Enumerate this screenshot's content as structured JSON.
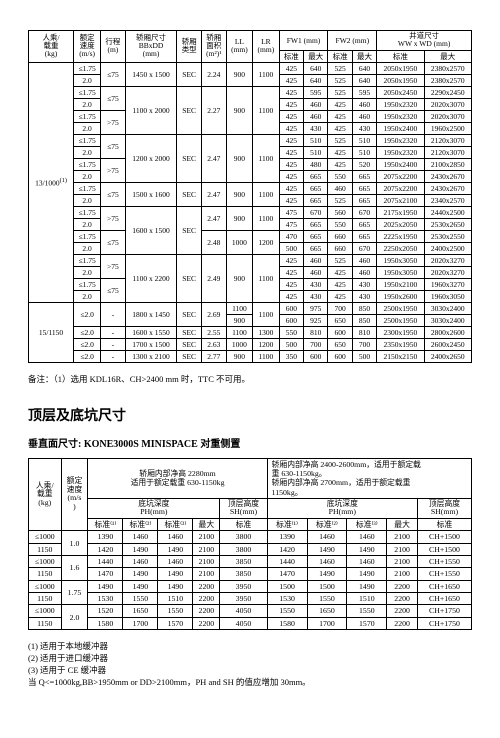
{
  "table1": {
    "headers": {
      "c0": "人乘/\n载重\n(kg)",
      "c1": "额定\n速度\n(m/s)",
      "c2": "行程\n(m)",
      "c3": "轿厢尺寸\nBBxDD\n(mm)",
      "c4": "轿厢\n类型",
      "c5": "轿厢\n面积\n(m²)¹",
      "c6": "LL\n(mm)",
      "c7": "LR\n(mm)",
      "fw1": "FW1 (mm)",
      "fw2": "FW2 (mm)",
      "well": "井道尺寸\nWW x WD  (mm)",
      "std": "标准",
      "max": "最大"
    },
    "group1": {
      "load": "13/1000",
      "sup": "(1)",
      "rows": [
        {
          "spd": "≤1.75",
          "trip": "≤75",
          "car": "1450 x 1500",
          "typ": "SEC",
          "area": "2.24",
          "ll": "900",
          "lr": "1100",
          "r": [
            [
              "425",
              "640",
              "525",
              "640",
              "2050x1950",
              "2380x2570"
            ],
            [
              "425",
              "640",
              "525",
              "640",
              "2050x1950",
              "2380x2570"
            ]
          ]
        },
        {
          "spd": "2.0",
          "r": null
        },
        {
          "spd": "≤1.75",
          "trip": "≤75",
          "car": "1100 x 2000",
          "typ": "SEC",
          "area": "2.27",
          "ll": "900",
          "lr": "1100",
          "r": [
            [
              "425",
              "595",
              "525",
              "595",
              "2050x2450",
              "2290x2450"
            ],
            [
              "425",
              "460",
              "425",
              "460",
              "1950x2320",
              "2020x3070"
            ],
            [
              "425",
              "460",
              "425",
              "460",
              "1950x2320",
              "2020x3070"
            ],
            [
              "425",
              "430",
              "425",
              "430",
              "1950x2400",
              "1960x2500"
            ]
          ]
        },
        {
          "spd": "2.0",
          "r": null
        },
        {
          "spd": "≤1.75",
          "trip": ">75",
          "r": null
        },
        {
          "spd": "2.0",
          "r": null
        },
        {
          "spd": "≤1.75",
          "trip": "≤75",
          "car": "1200 x 2000",
          "typ": "SEC",
          "area": "2.47",
          "ll": "900",
          "lr": "1100",
          "r": [
            [
              "425",
              "510",
              "525",
              "510",
              "1950x2320",
              "2120x3070"
            ],
            [
              "425",
              "510",
              "425",
              "510",
              "1950x2320",
              "2120x3070"
            ],
            [
              "425",
              "480",
              "425",
              "520",
              "1950x2400",
              "2100x2850"
            ],
            [
              "425",
              "665",
              "550",
              "665",
              "2075x2200",
              "2430x2670"
            ]
          ]
        },
        {
          "spd": "2.0",
          "r": null
        },
        {
          "spd": "≤1.75",
          "trip": ">75",
          "r": null
        },
        {
          "spd": "2.0",
          "r": null
        },
        {
          "spd": "≤1.75",
          "trip": "≤75",
          "car": "1500 x 1600",
          "typ": "SEC",
          "area": "2.47",
          "ll": "900",
          "lr": "1100",
          "r": [
            [
              "425",
              "665",
              "460",
              "665",
              "2075x2200",
              "2430x2670"
            ],
            [
              "425",
              "665",
              "525",
              "665",
              "2075x2100",
              "2340x2570"
            ],
            [
              "425",
              "715",
              "600",
              "715",
              "2175x1950",
              "2500x2570"
            ],
            [
              "425",
              "715",
              "600",
              "715",
              "2175x1950",
              "2500x2570"
            ]
          ]
        },
        {
          "spd": "2.0",
          "r": null
        },
        {
          "spd": "≤1.75",
          "trip": ">75",
          "car": "1600 x 1500",
          "typ": "SEC",
          "area_a": "2.47",
          "ll_a": "900",
          "lr_a": "1100",
          "r": [
            [
              "475",
              "670",
              "560",
              "670",
              "2175x1950",
              "2440x2500"
            ],
            [
              "475",
              "665",
              "550",
              "665",
              "2025x2050",
              "2530x2650"
            ],
            [
              "470",
              "665",
              "660",
              "665",
              "2225x1950",
              "2530x2550"
            ],
            [
              "500",
              "665",
              "660",
              "670",
              "2250x2050",
              "2400x2500"
            ]
          ]
        },
        {
          "spd": "2.0",
          "r": null
        },
        {
          "spd": "≤1.75",
          "trip": "≤75",
          "area_b": "2.48",
          "ll_b": "1000",
          "lr_b": "1200",
          "r": [
            [
              "425",
              "460",
              "525",
              "460",
              "1950x3050",
              "2020x3270"
            ],
            [
              "425",
              "460",
              "425",
              "460",
              "1950x3050",
              "2020x3270"
            ],
            [
              "425",
              "430",
              "425",
              "430",
              "1950x2100",
              "1960x3270"
            ],
            [
              "425",
              "430",
              "425",
              "430",
              "1950x2600",
              "1960x3050"
            ]
          ]
        },
        {
          "spd": "2.0",
          "r": null
        },
        {
          "spd": "≤1.75",
          "trip": ">75",
          "car2": "1100 x 2200",
          "typ2": "SEC",
          "area2": "2.49",
          "ll2": "900",
          "lr2": "1100",
          "r": null
        },
        {
          "spd": "2.0",
          "r": null
        }
      ]
    },
    "group2": {
      "load": "15/1150",
      "rows": [
        {
          "spd": "≤2.0",
          "trip": "-",
          "car": "1800 x 1450",
          "typ": "SEC",
          "area": "2.69",
          "ll": "1100\n900",
          "lr": "1100",
          "r": [
            [
              "600",
              "975",
              "700",
              "850",
              "2500x1950",
              "3030x2400"
            ],
            [
              "600",
              "925",
              "650",
              "850",
              "2500x1950",
              "3030x2400"
            ]
          ]
        },
        {
          "spd": "≤2.0",
          "trip": "-",
          "car": "1600 x 1550",
          "typ": "SEC",
          "area": "2.55",
          "ll": "1100",
          "lr": "1300",
          "r": [
            [
              "550",
              "810",
              "600",
              "810",
              "2300x1950",
              "2800x2600"
            ]
          ]
        },
        {
          "spd": "≤2.0",
          "trip": "-",
          "car": "1700 x 1500",
          "typ": "SEC",
          "area": "2.63",
          "ll": "1000",
          "lr": "1200",
          "r": [
            [
              "500",
              "700",
              "650",
              "700",
              "2350x1950",
              "2600x2450"
            ]
          ]
        },
        {
          "spd": "≤2.0",
          "trip": "-",
          "car": "1300 x 2100",
          "typ": "SEC",
          "area": "2.77",
          "ll": "900",
          "lr": "1100",
          "r": [
            [
              "350",
              "600",
              "600",
              "500",
              "2150x2150",
              "2400x2650"
            ]
          ]
        }
      ]
    }
  },
  "footnote": "备注：（1）选用 KDL16R、CH>2400 mm 时，TTC 不可用。",
  "section_title": "顶层及底坑尺寸",
  "sub_title": "垂直面尺寸: KONE3000S MINISPACE 对重侧置",
  "table2": {
    "note_a": "轿厢内部净高 2280mm\n适用于额定载重 630-1150kg",
    "note_b": "轿厢内部净高 2400-2600mm，适用于额定载\n重 630-1150kg。\n轿厢内部净高 2700mm，适用于额定载重\n1150kg。",
    "ph": "底坑深度\nPH(mm)",
    "sh": "顶层高度\nSH(mm)",
    "std1": "标准⁽¹⁾",
    "std2": "标准⁽²⁾",
    "std3": "标准⁽³⁾",
    "max": "最大",
    "std": "标准",
    "c0": "人乘/\n载重\n(kg)",
    "c1": "额定\n速度\n(m/s\n)",
    "rows": [
      {
        "load": "≤1000",
        "spd": "1.0",
        "v": [
          "1390",
          "1460",
          "1460",
          "2100",
          "3800",
          "1390",
          "1460",
          "1460",
          "2100",
          "CH+1500"
        ]
      },
      {
        "load": "1150",
        "v": [
          "1420",
          "1490",
          "1490",
          "2100",
          "3800",
          "1420",
          "1490",
          "1490",
          "2100",
          "CH+1500"
        ]
      },
      {
        "load": "≤1000",
        "spd": "1.6",
        "v": [
          "1440",
          "1460",
          "1460",
          "2100",
          "3850",
          "1440",
          "1460",
          "1460",
          "2100",
          "CH+1550"
        ]
      },
      {
        "load": "1150",
        "v": [
          "1470",
          "1490",
          "1490",
          "2100",
          "3850",
          "1470",
          "1490",
          "1490",
          "2100",
          "CH+1550"
        ]
      },
      {
        "load": "≤1000",
        "spd": "1.75",
        "v": [
          "1490",
          "1490",
          "1490",
          "2200",
          "3950",
          "1500",
          "1500",
          "1490",
          "2200",
          "CH+1650"
        ]
      },
      {
        "load": "1150",
        "v": [
          "1530",
          "1550",
          "1510",
          "2200",
          "3950",
          "1530",
          "1550",
          "1510",
          "2200",
          "CH+1650"
        ]
      },
      {
        "load": "≤1000",
        "spd": "2.0",
        "v": [
          "1520",
          "1650",
          "1550",
          "2200",
          "4050",
          "1550",
          "1650",
          "1550",
          "2200",
          "CH+1750"
        ]
      },
      {
        "load": "1150",
        "v": [
          "1580",
          "1700",
          "1570",
          "2200",
          "4050",
          "1580",
          "1700",
          "1570",
          "2200",
          "CH+1750"
        ]
      }
    ],
    "footnotes": "(1) 适用于本地缓冲器\n(2) 适用于进口缓冲器\n(3) 适用于 CE 缓冲器\n当 Q<=1000kg,BB>1950mm or DD>2100mm，PH and SH 的值应增加 30mm。"
  }
}
